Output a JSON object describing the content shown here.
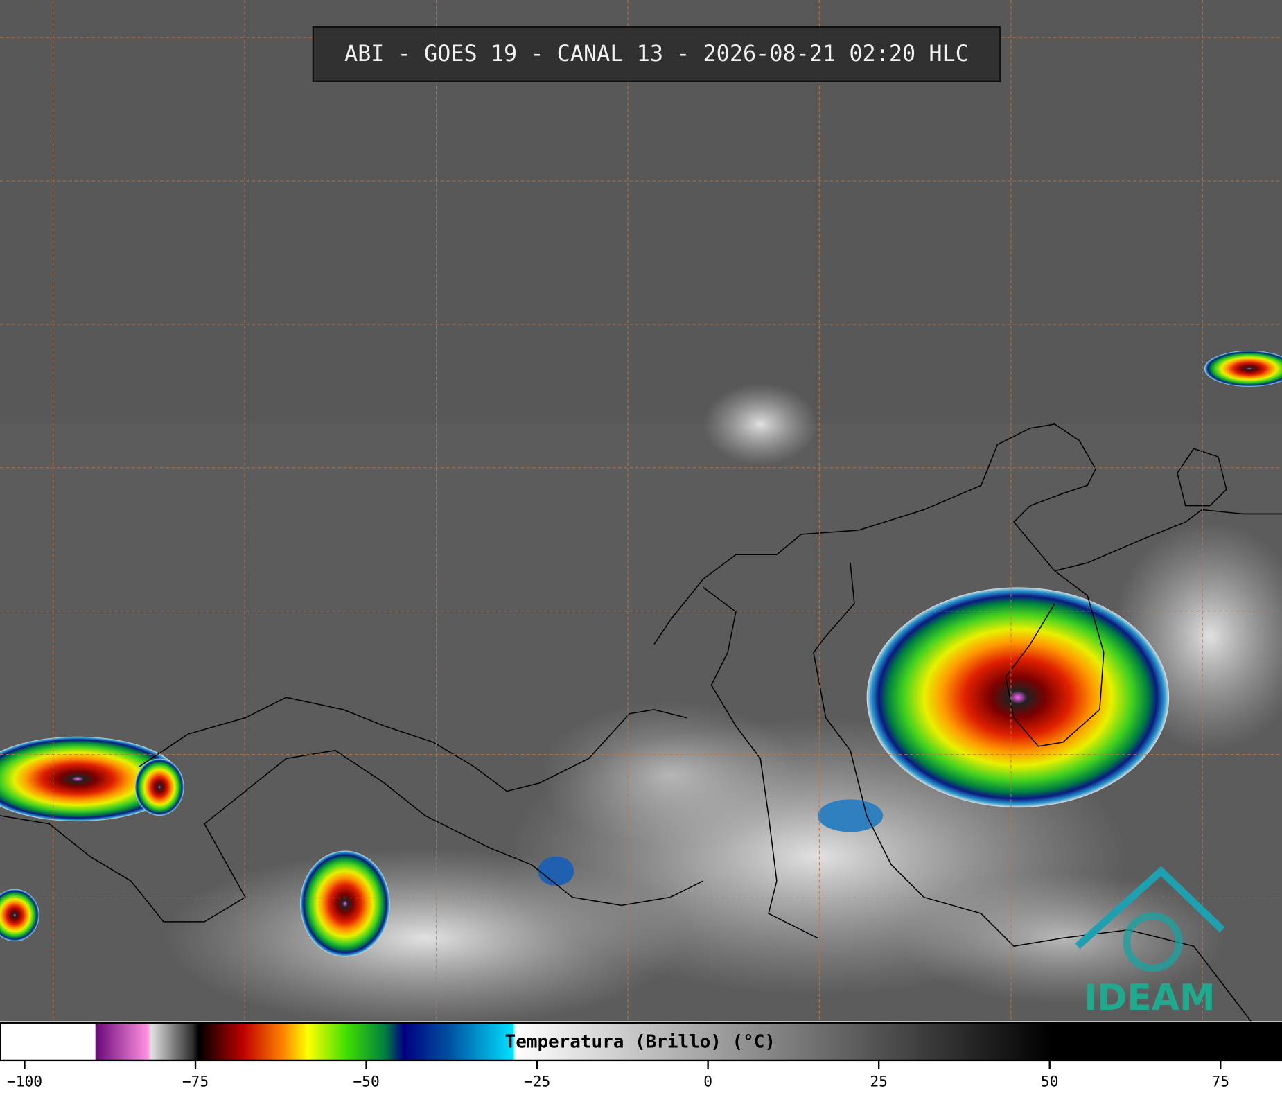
{
  "header": {
    "title": "ABI - GOES 19 - CANAL 13 - 2026-08-21 02:20 HLC"
  },
  "logo": {
    "text": "IDEAM"
  },
  "colorbar": {
    "label": "Temperatura (Brillo) (°C)",
    "lim": [
      -103.6,
      84
    ],
    "ticks": [
      {
        "value": -100,
        "label": "−100"
      },
      {
        "value": -75,
        "label": "−75"
      },
      {
        "value": -50,
        "label": "−50"
      },
      {
        "value": -25,
        "label": "−25"
      },
      0,
      25,
      50,
      75
    ]
  }
}
